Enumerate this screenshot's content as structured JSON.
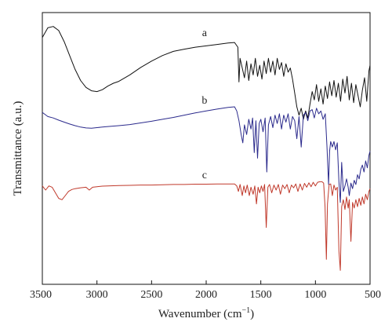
{
  "chart_data": {
    "type": "line",
    "xlabel": "Wavenumber (cm",
    "xlabel_sup": "−1",
    "xlabel_close": ")",
    "ylabel": "Transmittance (a.u.)",
    "xlim": [
      3500,
      500
    ],
    "x_reversed": true,
    "y_unit": "arbitrary (stacked, offset)",
    "x_ticks": [
      3500,
      3000,
      2500,
      2000,
      1500,
      1000,
      500
    ],
    "x_tick_labels": [
      "3500",
      "3000",
      "2500",
      "2000",
      "1500",
      "1000",
      "500"
    ],
    "grid": false,
    "legend": "none; series labelled inline",
    "series": [
      {
        "name": "a",
        "color": "#111111",
        "points": [
          [
            3500,
            8.7
          ],
          [
            3450,
            9.05
          ],
          [
            3400,
            9.1
          ],
          [
            3350,
            8.95
          ],
          [
            3300,
            8.55
          ],
          [
            3250,
            8.05
          ],
          [
            3200,
            7.55
          ],
          [
            3150,
            7.15
          ],
          [
            3100,
            6.9
          ],
          [
            3050,
            6.78
          ],
          [
            3000,
            6.75
          ],
          [
            2950,
            6.82
          ],
          [
            2900,
            6.95
          ],
          [
            2850,
            7.05
          ],
          [
            2800,
            7.12
          ],
          [
            2700,
            7.35
          ],
          [
            2600,
            7.62
          ],
          [
            2500,
            7.85
          ],
          [
            2400,
            8.05
          ],
          [
            2300,
            8.2
          ],
          [
            2200,
            8.28
          ],
          [
            2100,
            8.35
          ],
          [
            2000,
            8.4
          ],
          [
            1900,
            8.45
          ],
          [
            1800,
            8.5
          ],
          [
            1740,
            8.52
          ],
          [
            1710,
            8.35
          ],
          [
            1700,
            7.1
          ],
          [
            1690,
            7.95
          ],
          [
            1670,
            7.6
          ],
          [
            1650,
            7.25
          ],
          [
            1630,
            7.85
          ],
          [
            1610,
            7.15
          ],
          [
            1590,
            7.75
          ],
          [
            1570,
            7.35
          ],
          [
            1550,
            7.95
          ],
          [
            1530,
            7.3
          ],
          [
            1510,
            7.7
          ],
          [
            1490,
            7.2
          ],
          [
            1470,
            7.85
          ],
          [
            1450,
            7.4
          ],
          [
            1430,
            7.95
          ],
          [
            1410,
            7.45
          ],
          [
            1390,
            7.85
          ],
          [
            1370,
            7.35
          ],
          [
            1350,
            7.95
          ],
          [
            1330,
            7.55
          ],
          [
            1310,
            7.8
          ],
          [
            1290,
            7.3
          ],
          [
            1270,
            7.75
          ],
          [
            1250,
            7.45
          ],
          [
            1230,
            7.6
          ],
          [
            1210,
            7.2
          ],
          [
            1190,
            6.7
          ],
          [
            1170,
            6.2
          ],
          [
            1150,
            5.9
          ],
          [
            1130,
            6.15
          ],
          [
            1110,
            5.75
          ],
          [
            1090,
            6.05
          ],
          [
            1070,
            5.8
          ],
          [
            1050,
            6.3
          ],
          [
            1030,
            6.75
          ],
          [
            1010,
            6.45
          ],
          [
            990,
            7.0
          ],
          [
            970,
            6.4
          ],
          [
            950,
            6.85
          ],
          [
            930,
            6.3
          ],
          [
            910,
            6.95
          ],
          [
            890,
            6.5
          ],
          [
            870,
            7.1
          ],
          [
            850,
            6.6
          ],
          [
            830,
            7.15
          ],
          [
            810,
            6.55
          ],
          [
            790,
            7.05
          ],
          [
            770,
            6.4
          ],
          [
            750,
            7.2
          ],
          [
            730,
            6.7
          ],
          [
            710,
            7.3
          ],
          [
            690,
            6.45
          ],
          [
            670,
            7.05
          ],
          [
            650,
            6.35
          ],
          [
            630,
            7.0
          ],
          [
            610,
            6.6
          ],
          [
            590,
            6.2
          ],
          [
            570,
            6.8
          ],
          [
            550,
            7.25
          ],
          [
            530,
            6.4
          ],
          [
            510,
            7.5
          ],
          [
            500,
            7.7
          ]
        ]
      },
      {
        "name": "b",
        "color": "#2b2a8c",
        "points": [
          [
            3500,
            6.0
          ],
          [
            3450,
            5.85
          ],
          [
            3400,
            5.8
          ],
          [
            3350,
            5.72
          ],
          [
            3300,
            5.65
          ],
          [
            3250,
            5.58
          ],
          [
            3200,
            5.52
          ],
          [
            3150,
            5.47
          ],
          [
            3100,
            5.44
          ],
          [
            3050,
            5.43
          ],
          [
            3000,
            5.45
          ],
          [
            2950,
            5.47
          ],
          [
            2900,
            5.49
          ],
          [
            2800,
            5.52
          ],
          [
            2700,
            5.56
          ],
          [
            2600,
            5.62
          ],
          [
            2500,
            5.68
          ],
          [
            2400,
            5.75
          ],
          [
            2300,
            5.82
          ],
          [
            2200,
            5.9
          ],
          [
            2100,
            5.98
          ],
          [
            2000,
            6.05
          ],
          [
            1900,
            6.12
          ],
          [
            1800,
            6.18
          ],
          [
            1740,
            6.2
          ],
          [
            1720,
            6.05
          ],
          [
            1700,
            5.7
          ],
          [
            1680,
            5.2
          ],
          [
            1665,
            4.9
          ],
          [
            1650,
            5.55
          ],
          [
            1630,
            5.2
          ],
          [
            1610,
            5.75
          ],
          [
            1590,
            5.4
          ],
          [
            1575,
            5.8
          ],
          [
            1560,
            4.55
          ],
          [
            1545,
            5.7
          ],
          [
            1530,
            4.35
          ],
          [
            1515,
            5.6
          ],
          [
            1500,
            5.75
          ],
          [
            1480,
            5.3
          ],
          [
            1460,
            5.8
          ],
          [
            1445,
            3.85
          ],
          [
            1430,
            5.55
          ],
          [
            1410,
            5.85
          ],
          [
            1390,
            5.45
          ],
          [
            1370,
            5.9
          ],
          [
            1350,
            5.6
          ],
          [
            1330,
            5.95
          ],
          [
            1310,
            5.4
          ],
          [
            1290,
            5.9
          ],
          [
            1270,
            5.65
          ],
          [
            1250,
            5.95
          ],
          [
            1230,
            5.4
          ],
          [
            1210,
            5.85
          ],
          [
            1190,
            5.7
          ],
          [
            1170,
            5.05
          ],
          [
            1150,
            5.85
          ],
          [
            1130,
            4.75
          ],
          [
            1110,
            5.9
          ],
          [
            1090,
            6.0
          ],
          [
            1070,
            5.7
          ],
          [
            1050,
            6.05
          ],
          [
            1030,
            6.1
          ],
          [
            1010,
            5.8
          ],
          [
            990,
            6.15
          ],
          [
            970,
            5.95
          ],
          [
            950,
            6.05
          ],
          [
            930,
            5.75
          ],
          [
            910,
            5.95
          ],
          [
            895,
            4.8
          ],
          [
            880,
            3.4
          ],
          [
            870,
            4.6
          ],
          [
            860,
            4.95
          ],
          [
            845,
            4.75
          ],
          [
            830,
            4.95
          ],
          [
            815,
            4.65
          ],
          [
            800,
            4.9
          ],
          [
            785,
            3.5
          ],
          [
            772,
            2.75
          ],
          [
            760,
            4.2
          ],
          [
            745,
            3.15
          ],
          [
            730,
            3.35
          ],
          [
            715,
            3.6
          ],
          [
            700,
            3.3
          ],
          [
            690,
            3.0
          ],
          [
            675,
            3.45
          ],
          [
            660,
            3.25
          ],
          [
            645,
            3.55
          ],
          [
            630,
            3.4
          ],
          [
            615,
            3.75
          ],
          [
            600,
            3.6
          ],
          [
            585,
            3.95
          ],
          [
            570,
            4.1
          ],
          [
            555,
            3.85
          ],
          [
            540,
            4.25
          ],
          [
            525,
            4.0
          ],
          [
            510,
            4.45
          ],
          [
            500,
            4.6
          ]
        ]
      },
      {
        "name": "c",
        "color": "#c0392b",
        "points": [
          [
            3500,
            3.35
          ],
          [
            3470,
            3.2
          ],
          [
            3440,
            3.35
          ],
          [
            3410,
            3.3
          ],
          [
            3380,
            3.1
          ],
          [
            3350,
            2.9
          ],
          [
            3320,
            2.85
          ],
          [
            3290,
            3.0
          ],
          [
            3260,
            3.15
          ],
          [
            3230,
            3.22
          ],
          [
            3200,
            3.25
          ],
          [
            3150,
            3.28
          ],
          [
            3100,
            3.3
          ],
          [
            3070,
            3.2
          ],
          [
            3040,
            3.3
          ],
          [
            3000,
            3.32
          ],
          [
            2950,
            3.34
          ],
          [
            2900,
            3.35
          ],
          [
            2800,
            3.36
          ],
          [
            2700,
            3.37
          ],
          [
            2600,
            3.38
          ],
          [
            2500,
            3.38
          ],
          [
            2400,
            3.39
          ],
          [
            2300,
            3.4
          ],
          [
            2200,
            3.4
          ],
          [
            2100,
            3.41
          ],
          [
            2000,
            3.41
          ],
          [
            1900,
            3.42
          ],
          [
            1800,
            3.42
          ],
          [
            1740,
            3.42
          ],
          [
            1720,
            3.35
          ],
          [
            1705,
            3.15
          ],
          [
            1690,
            3.4
          ],
          [
            1670,
            3.0
          ],
          [
            1655,
            3.35
          ],
          [
            1640,
            3.1
          ],
          [
            1625,
            3.38
          ],
          [
            1605,
            3.0
          ],
          [
            1590,
            3.3
          ],
          [
            1570,
            3.05
          ],
          [
            1555,
            3.35
          ],
          [
            1540,
            2.7
          ],
          [
            1525,
            3.3
          ],
          [
            1510,
            3.1
          ],
          [
            1495,
            3.35
          ],
          [
            1480,
            3.15
          ],
          [
            1465,
            3.4
          ],
          [
            1450,
            1.85
          ],
          [
            1435,
            3.3
          ],
          [
            1420,
            3.4
          ],
          [
            1400,
            3.1
          ],
          [
            1380,
            3.38
          ],
          [
            1360,
            3.2
          ],
          [
            1340,
            3.4
          ],
          [
            1320,
            3.05
          ],
          [
            1300,
            3.38
          ],
          [
            1280,
            3.25
          ],
          [
            1260,
            3.4
          ],
          [
            1240,
            3.1
          ],
          [
            1220,
            3.38
          ],
          [
            1200,
            3.28
          ],
          [
            1180,
            3.42
          ],
          [
            1160,
            3.15
          ],
          [
            1140,
            3.42
          ],
          [
            1120,
            3.2
          ],
          [
            1100,
            3.44
          ],
          [
            1080,
            3.3
          ],
          [
            1060,
            3.46
          ],
          [
            1040,
            3.32
          ],
          [
            1020,
            3.48
          ],
          [
            1000,
            3.35
          ],
          [
            980,
            3.48
          ],
          [
            960,
            3.5
          ],
          [
            940,
            3.5
          ],
          [
            925,
            3.45
          ],
          [
            912,
            2.6
          ],
          [
            900,
            0.7
          ],
          [
            890,
            2.7
          ],
          [
            875,
            3.4
          ],
          [
            860,
            3.42
          ],
          [
            845,
            3.0
          ],
          [
            830,
            3.38
          ],
          [
            815,
            3.2
          ],
          [
            800,
            3.3
          ],
          [
            785,
            1.0
          ],
          [
            772,
            0.3
          ],
          [
            760,
            2.6
          ],
          [
            745,
            2.85
          ],
          [
            730,
            2.5
          ],
          [
            715,
            2.95
          ],
          [
            700,
            2.55
          ],
          [
            690,
            2.85
          ],
          [
            675,
            1.35
          ],
          [
            660,
            2.75
          ],
          [
            645,
            2.55
          ],
          [
            630,
            2.85
          ],
          [
            615,
            2.6
          ],
          [
            600,
            2.9
          ],
          [
            585,
            2.65
          ],
          [
            570,
            2.95
          ],
          [
            555,
            2.7
          ],
          [
            540,
            3.05
          ],
          [
            525,
            2.85
          ],
          [
            510,
            3.15
          ],
          [
            500,
            3.25
          ]
        ]
      }
    ],
    "inline_labels": [
      {
        "text": "a",
        "x": 2015,
        "y": 8.75
      },
      {
        "text": "b",
        "x": 2015,
        "y": 6.32
      },
      {
        "text": "c",
        "x": 2015,
        "y": 3.62
      }
    ]
  }
}
